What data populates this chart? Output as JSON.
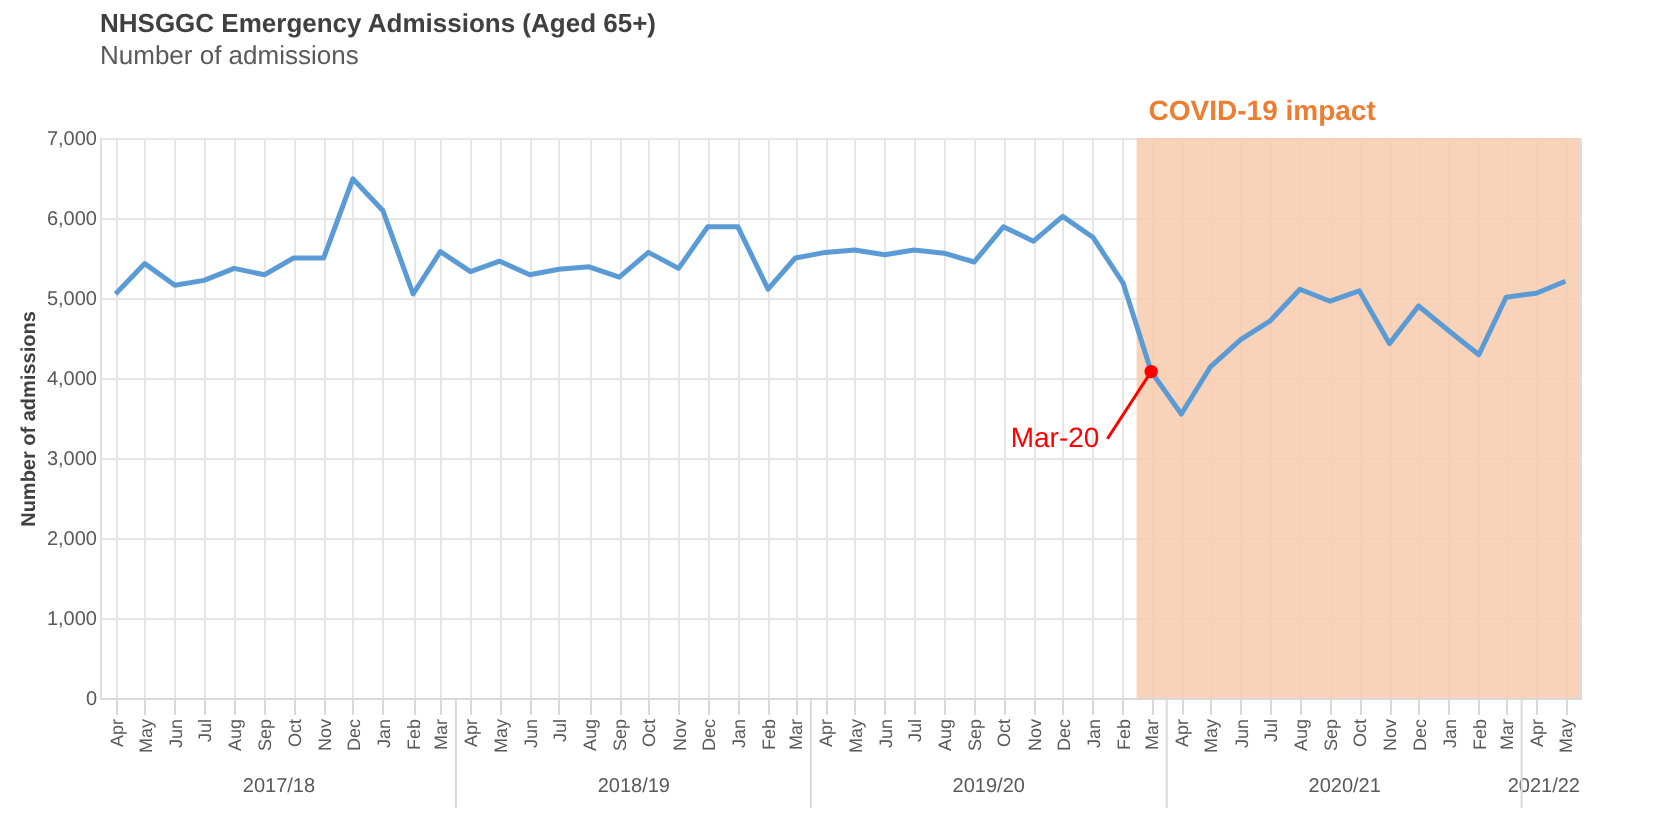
{
  "chart_data": {
    "type": "line",
    "title": "NHSGGC Emergency Admissions (Aged 65+)",
    "subtitle": "Number of admissions",
    "ylabel": "Number of admissions",
    "x": [
      "2017-04",
      "2017-05",
      "2017-06",
      "2017-07",
      "2017-08",
      "2017-09",
      "2017-10",
      "2017-11",
      "2017-12",
      "2018-01",
      "2018-02",
      "2018-03",
      "2018-04",
      "2018-05",
      "2018-06",
      "2018-07",
      "2018-08",
      "2018-09",
      "2018-10",
      "2018-11",
      "2018-12",
      "2019-01",
      "2019-02",
      "2019-03",
      "2019-04",
      "2019-05",
      "2019-06",
      "2019-07",
      "2019-08",
      "2019-09",
      "2019-10",
      "2019-11",
      "2019-12",
      "2020-01",
      "2020-02",
      "2020-03",
      "2020-04",
      "2020-05",
      "2020-06",
      "2020-07",
      "2020-08",
      "2020-09",
      "2020-10",
      "2020-11",
      "2020-12",
      "2021-01",
      "2021-02",
      "2021-03",
      "2021-04",
      "2021-05"
    ],
    "series": [
      {
        "color": "#5b9bd5",
        "values": [
          5050,
          5430,
          5160,
          5220,
          5370,
          5290,
          5500,
          5500,
          6490,
          6090,
          5050,
          5580,
          5330,
          5460,
          5290,
          5360,
          5390,
          5260,
          5570,
          5370,
          5890,
          5890,
          5110,
          5500,
          5570,
          5600,
          5540,
          5600,
          5560,
          5450,
          5890,
          5710,
          6020,
          5760,
          5190,
          4080,
          3550,
          4140,
          4480,
          4710,
          5110,
          4960,
          5090,
          4430,
          4900,
          4590,
          4290,
          5010,
          5060,
          5210
        ]
      }
    ],
    "xlim": [
      "2017-03-16",
      "2021-05-16"
    ],
    "xticks": [
      {
        "value": "2017-04",
        "label": "Apr"
      },
      {
        "value": "2017-05",
        "label": "May"
      },
      {
        "value": "2017-06",
        "label": "Jun"
      },
      {
        "value": "2017-07",
        "label": "Jul"
      },
      {
        "value": "2017-08",
        "label": "Aug"
      },
      {
        "value": "2017-09",
        "label": "Sep"
      },
      {
        "value": "2017-10",
        "label": "Oct"
      },
      {
        "value": "2017-11",
        "label": "Nov"
      },
      {
        "value": "2017-12",
        "label": "Dec"
      },
      {
        "value": "2018-01",
        "label": "Jan"
      },
      {
        "value": "2018-02",
        "label": "Feb"
      },
      {
        "value": "2018-03",
        "label": "Mar"
      },
      {
        "value": "2018-04",
        "label": "Apr"
      },
      {
        "value": "2018-05",
        "label": "May"
      },
      {
        "value": "2018-06",
        "label": "Jun"
      },
      {
        "value": "2018-07",
        "label": "Jul"
      },
      {
        "value": "2018-08",
        "label": "Aug"
      },
      {
        "value": "2018-09",
        "label": "Sep"
      },
      {
        "value": "2018-10",
        "label": "Oct"
      },
      {
        "value": "2018-11",
        "label": "Nov"
      },
      {
        "value": "2018-12",
        "label": "Dec"
      },
      {
        "value": "2019-01",
        "label": "Jan"
      },
      {
        "value": "2019-02",
        "label": "Feb"
      },
      {
        "value": "2019-03",
        "label": "Mar"
      },
      {
        "value": "2019-04",
        "label": "Apr"
      },
      {
        "value": "2019-05",
        "label": "May"
      },
      {
        "value": "2019-06",
        "label": "Jun"
      },
      {
        "value": "2019-07",
        "label": "Jul"
      },
      {
        "value": "2019-08",
        "label": "Aug"
      },
      {
        "value": "2019-09",
        "label": "Sep"
      },
      {
        "value": "2019-10",
        "label": "Oct"
      },
      {
        "value": "2019-11",
        "label": "Nov"
      },
      {
        "value": "2019-12",
        "label": "Dec"
      },
      {
        "value": "2020-01",
        "label": "Jan"
      },
      {
        "value": "2020-02",
        "label": "Feb"
      },
      {
        "value": "2020-03",
        "label": "Mar"
      },
      {
        "value": "2020-04",
        "label": "Apr"
      },
      {
        "value": "2020-05",
        "label": "May"
      },
      {
        "value": "2020-06",
        "label": "Jun"
      },
      {
        "value": "2020-07",
        "label": "Jul"
      },
      {
        "value": "2020-08",
        "label": "Aug"
      },
      {
        "value": "2020-09",
        "label": "Sep"
      },
      {
        "value": "2020-10",
        "label": "Oct"
      },
      {
        "value": "2020-11",
        "label": "Nov"
      },
      {
        "value": "2020-12",
        "label": "Dec"
      },
      {
        "value": "2021-01",
        "label": "Jan"
      },
      {
        "value": "2021-02",
        "label": "Feb"
      },
      {
        "value": "2021-03",
        "label": "Mar"
      },
      {
        "value": "2021-04",
        "label": "Apr"
      },
      {
        "value": "2021-05",
        "label": "May"
      }
    ],
    "ylim": [
      0,
      7000
    ],
    "yticks": [
      {
        "value": 0,
        "label": "0"
      },
      {
        "value": 1000,
        "label": "1,000"
      },
      {
        "value": 2000,
        "label": "2,000"
      },
      {
        "value": 3000,
        "label": "3,000"
      },
      {
        "value": 4000,
        "label": "4,000"
      },
      {
        "value": 5000,
        "label": "5,000"
      },
      {
        "value": 6000,
        "label": "6,000"
      },
      {
        "value": 7000,
        "label": "7,000"
      }
    ],
    "bands": [
      {
        "axis": "x",
        "from": "2020-02-15",
        "to": "2021-05-16",
        "label": "COVID-19 impact",
        "color": "#f8cbad"
      }
    ],
    "annotations": [
      {
        "text": "Mar-20",
        "x": "2020-03",
        "y": 4080
      },
      "2017/18",
      "2018/19",
      "2019/20",
      "2020/21",
      "2021/22"
    ],
    "grid": true,
    "marker": "none",
    "line_style": "solid"
  }
}
